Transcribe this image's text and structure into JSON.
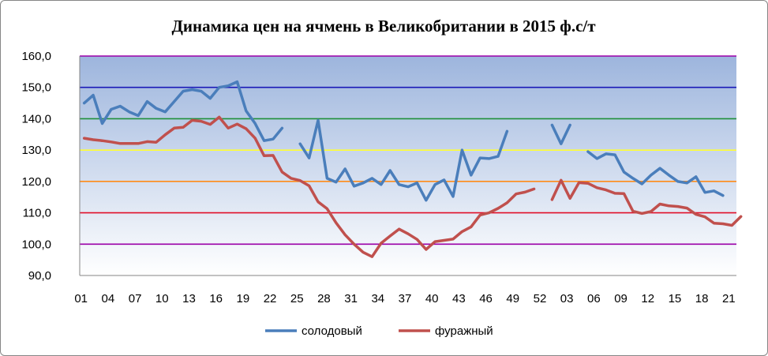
{
  "chart_data": {
    "type": "line",
    "title": "Динамика цен на ячмень в Великобритании в 2015 ф.с/т",
    "ylim": [
      90,
      160
    ],
    "yticks": [
      "90,0",
      "100,0",
      "110,0",
      "120,0",
      "130,0",
      "140,0",
      "150,0",
      "160,0"
    ],
    "xticks": [
      "01",
      "04",
      "07",
      "10",
      "13",
      "16",
      "19",
      "22",
      "25",
      "28",
      "31",
      "34",
      "37",
      "40",
      "43",
      "46",
      "49",
      "52",
      "03",
      "06",
      "09",
      "12",
      "15",
      "18",
      "21"
    ],
    "grid_lines": [
      {
        "value": 100,
        "color": "#9B00A8"
      },
      {
        "value": 110,
        "color": "#E0102A"
      },
      {
        "value": 120,
        "color": "#FF8C1A"
      },
      {
        "value": 130,
        "color": "#FFFF33"
      },
      {
        "value": 140,
        "color": "#1F8F3A"
      },
      {
        "value": 150,
        "color": "#1A1AB8"
      },
      {
        "value": 160,
        "color": "#9B00A8"
      }
    ],
    "legend_position": "bottom",
    "colors": {
      "plot_top": "#9DB5DD",
      "plot_bottom": "#FFFFFF"
    },
    "series": [
      {
        "name": "солодовый",
        "color": "#4A7EBB",
        "values": [
          145,
          147.5,
          138.5,
          143,
          144,
          142.2,
          141,
          145.5,
          143.3,
          142.2,
          145.5,
          148.8,
          149.3,
          148.8,
          146.5,
          150,
          150.5,
          151.8,
          142.5,
          138.5,
          133,
          133.5,
          137,
          null,
          132,
          127.5,
          139.5,
          121,
          119.8,
          124,
          118.5,
          119.5,
          121,
          119,
          123.5,
          119,
          118.3,
          119.5,
          114,
          119,
          120.5,
          115.2,
          130,
          122,
          127.5,
          127.3,
          128,
          136,
          null,
          null,
          null,
          null,
          138,
          132,
          138,
          null,
          129.5,
          127.3,
          128.8,
          128.5,
          123,
          121,
          119.2,
          122,
          124.2,
          122,
          120,
          119.5,
          121.5,
          116.5,
          117,
          115.5,
          null
        ]
      },
      {
        "name": "фуражный",
        "color": "#C0504D",
        "values": [
          133.8,
          133.3,
          133,
          132.6,
          132.1,
          132.1,
          132.1,
          132.7,
          132.5,
          134.9,
          137,
          137.3,
          139.5,
          139.2,
          138.2,
          140.5,
          137,
          138.3,
          136.8,
          133.8,
          128.2,
          128.3,
          123,
          121,
          120.3,
          118.6,
          113.5,
          111.3,
          106.8,
          103,
          100,
          97.4,
          96,
          100.3,
          102.6,
          104.8,
          103.3,
          101.5,
          98.3,
          100.8,
          101.2,
          101.6,
          104,
          105.5,
          109.3,
          110,
          111.4,
          113.2,
          116,
          116.6,
          117.6,
          null,
          114.2,
          120.4,
          114.6,
          119.6,
          119.4,
          118,
          117.3,
          116.2,
          116.1,
          110.5,
          109.8,
          110.4,
          112.8,
          112.2,
          112,
          111.5,
          109.5,
          108.7,
          106.7,
          106.5,
          106,
          108.8
        ]
      }
    ]
  }
}
